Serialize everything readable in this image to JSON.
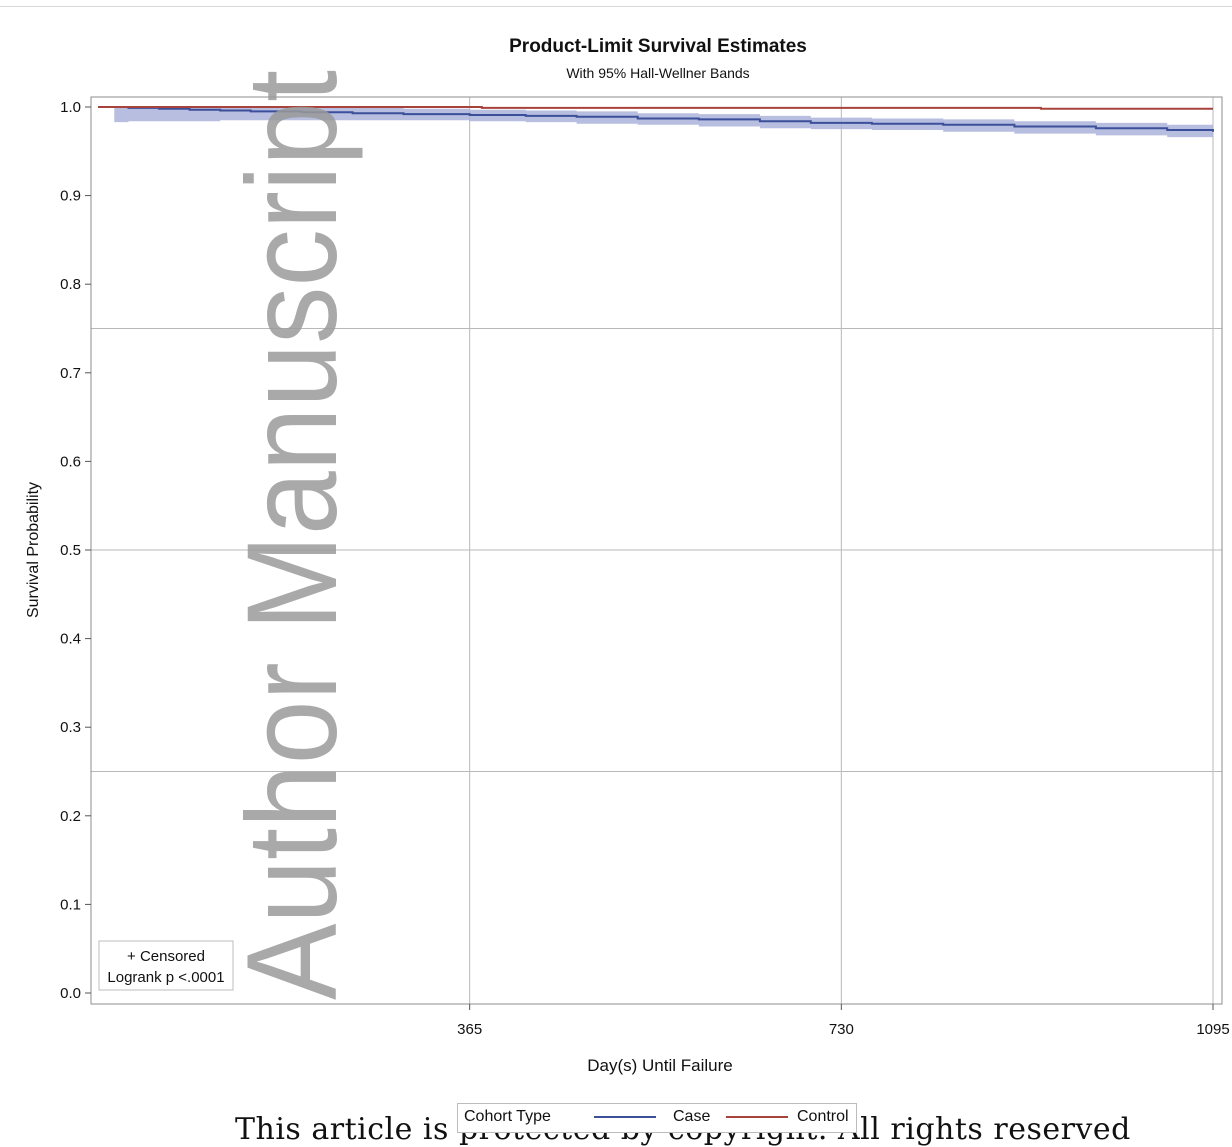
{
  "chart_data": {
    "type": "line",
    "title": "Product-Limit Survival Estimates",
    "subtitle": "With 95% Hall-Wellner Bands",
    "xlabel": "Day(s) Until Failure",
    "ylabel": "Survival Probability",
    "xlim": [
      0,
      1095
    ],
    "ylim": [
      0,
      1.0
    ],
    "x_ticks": [
      365,
      730,
      1095
    ],
    "y_ticks": [
      0.0,
      0.1,
      0.2,
      0.3,
      0.4,
      0.5,
      0.6,
      0.7,
      0.8,
      0.9,
      1.0
    ],
    "y_tick_labels": [
      "0.0",
      "0.1",
      "0.2",
      "0.3",
      "0.4",
      "0.5",
      "0.6",
      "0.7",
      "0.8",
      "0.9",
      "1.0"
    ],
    "x_tick_labels": [
      "365",
      "730",
      "1095"
    ],
    "grid": true,
    "series": [
      {
        "name": "Case",
        "color": "#3b4f9a",
        "x": [
          0,
          30,
          60,
          90,
          120,
          150,
          200,
          250,
          300,
          365,
          420,
          470,
          530,
          590,
          650,
          700,
          760,
          830,
          900,
          980,
          1050,
          1095
        ],
        "values": [
          1.0,
          0.999,
          0.998,
          0.997,
          0.996,
          0.995,
          0.994,
          0.993,
          0.992,
          0.991,
          0.99,
          0.989,
          0.987,
          0.986,
          0.984,
          0.982,
          0.981,
          0.98,
          0.978,
          0.976,
          0.974,
          0.972
        ],
        "band_lower": [
          0.983,
          0.983,
          0.984,
          0.984,
          0.984,
          0.985,
          0.985,
          0.985,
          0.985,
          0.985,
          0.984,
          0.983,
          0.981,
          0.98,
          0.978,
          0.976,
          0.975,
          0.974,
          0.972,
          0.97,
          0.968,
          0.966
        ],
        "band_upper": [
          1.0,
          1.0,
          1.0,
          1.0,
          1.0,
          1.0,
          0.999,
          0.999,
          0.998,
          0.997,
          0.996,
          0.995,
          0.993,
          0.992,
          0.99,
          0.988,
          0.987,
          0.986,
          0.984,
          0.982,
          0.98,
          0.978
        ]
      },
      {
        "name": "Control",
        "color": "#a8433b",
        "x": [
          0,
          377,
          926,
          1095
        ],
        "values": [
          1.0,
          0.999,
          0.998,
          0.998
        ]
      }
    ],
    "band_color": "#aab3d9",
    "inset_text": [
      "+ Censored",
      "Logrank p <.0001"
    ],
    "legend": {
      "title": "Cohort Type",
      "position": "bottom",
      "entries": [
        "Case",
        "Control"
      ]
    },
    "watermark": "Author Manuscript"
  },
  "footer_text": "This article is protected by copyright. All rights reserved"
}
